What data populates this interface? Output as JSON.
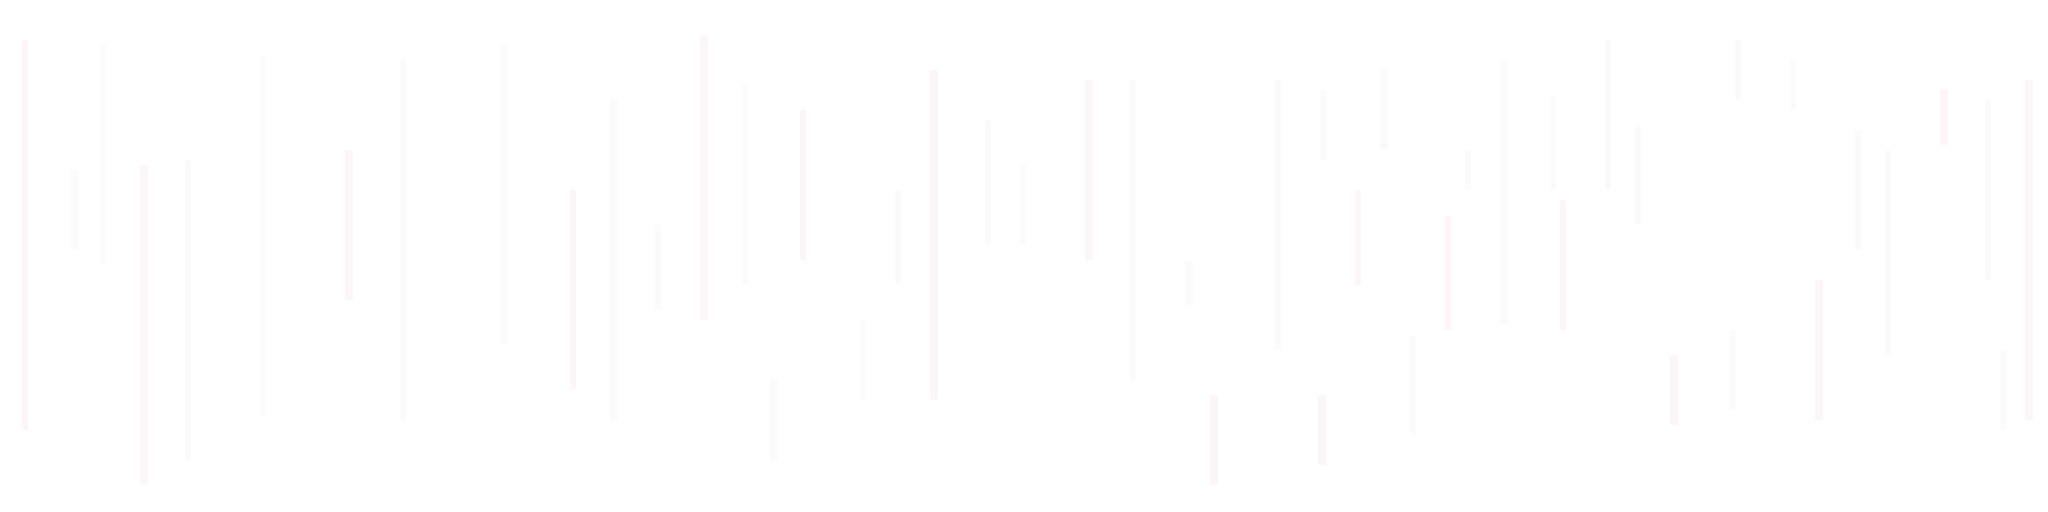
{
  "background_color": "#ffffff",
  "stripe_color": "#fdfafa",
  "stripe_accent_color": "#fcf6f6",
  "description_text": ""
}
